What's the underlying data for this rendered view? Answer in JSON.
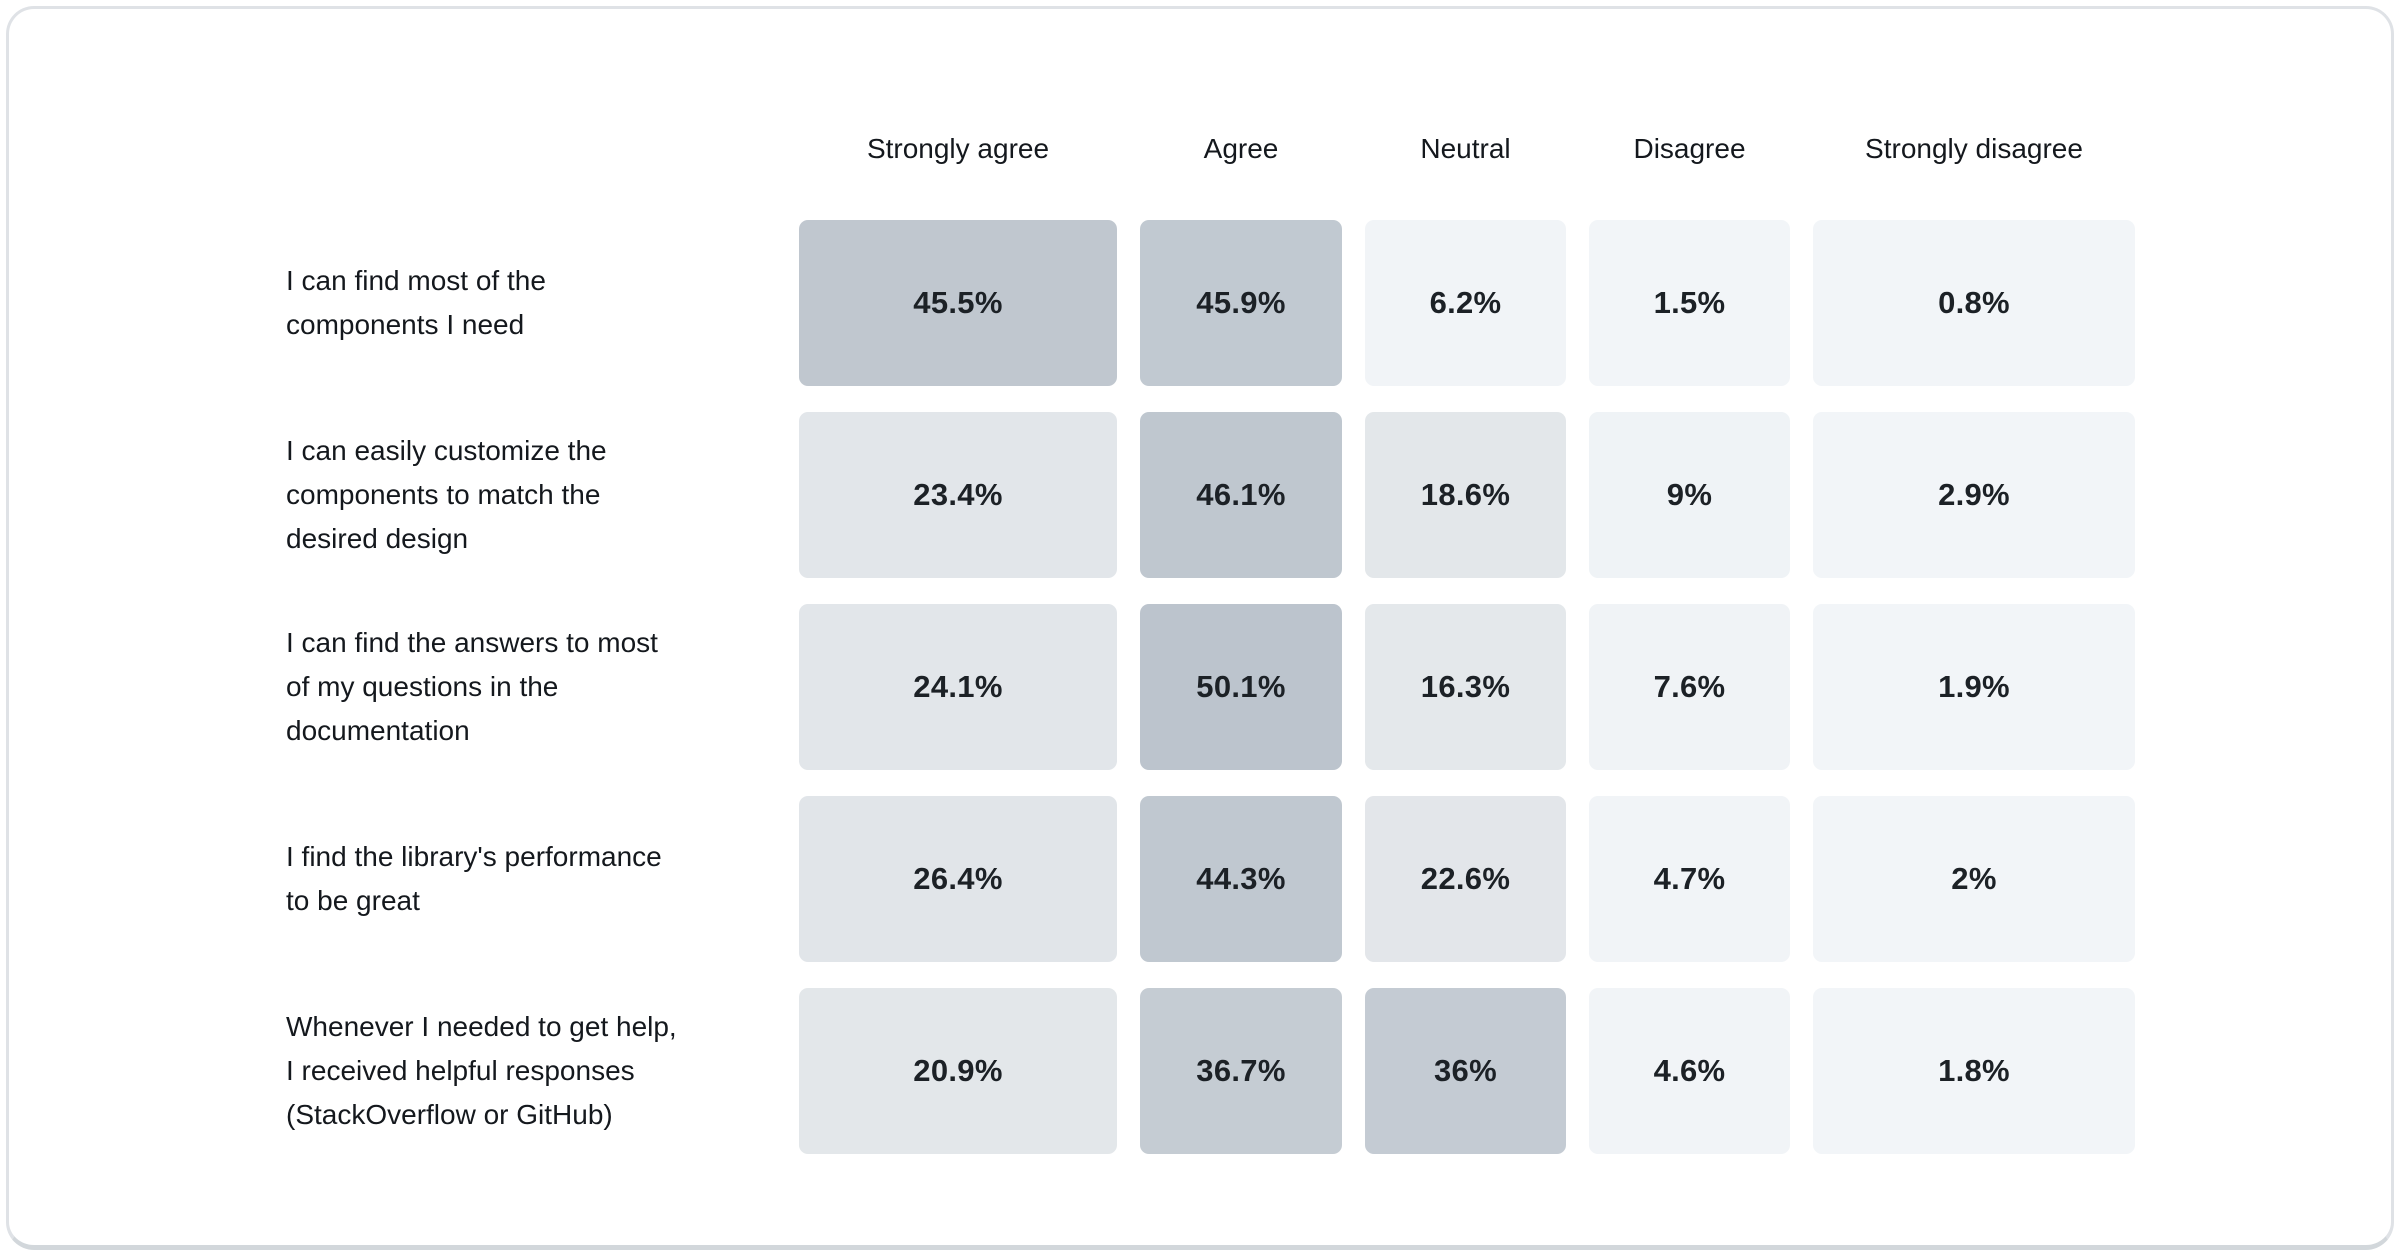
{
  "chart_data": {
    "type": "heatmap",
    "columns": [
      "Strongly agree",
      "Agree",
      "Neutral",
      "Disagree",
      "Strongly disagree"
    ],
    "rows": [
      {
        "label": "I can find most of the components I need",
        "label_lines": [
          "I can find most of the",
          "components I need"
        ],
        "values": [
          "45.5%",
          "45.9%",
          "6.2%",
          "1.5%",
          "0.8%"
        ],
        "values_numeric": [
          45.5,
          45.9,
          6.2,
          1.5,
          0.8
        ],
        "colors": [
          "#c0c7cf",
          "#c1c9d1",
          "#f1f4f7",
          "#f2f5f8",
          "#f2f5f8"
        ]
      },
      {
        "label": "I can easily customize the components to match the desired design",
        "label_lines": [
          "I can easily customize the",
          "components to match the",
          "desired design"
        ],
        "values": [
          "23.4%",
          "46.1%",
          "18.6%",
          "9%",
          "2.9%"
        ],
        "values_numeric": [
          23.4,
          46.1,
          18.6,
          9,
          2.9
        ],
        "colors": [
          "#e2e6ea",
          "#bfc7cf",
          "#e3e7ea",
          "#eff3f6",
          "#f2f5f8"
        ]
      },
      {
        "label": "I can find the answers to most of my questions in the documentation",
        "label_lines": [
          "I can find the answers to most",
          "of my questions in the",
          "documentation"
        ],
        "values": [
          "24.1%",
          "50.1%",
          "16.3%",
          "7.6%",
          "1.9%"
        ],
        "values_numeric": [
          24.1,
          50.1,
          16.3,
          7.6,
          1.9
        ],
        "colors": [
          "#e2e6ea",
          "#bcc4cd",
          "#e4e8eb",
          "#f0f3f6",
          "#f2f5f8"
        ]
      },
      {
        "label": "I find the library's performance to be great",
        "label_lines": [
          "I find the library's performance",
          "to be great"
        ],
        "values": [
          "26.4%",
          "44.3%",
          "22.6%",
          "4.7%",
          "2%"
        ],
        "values_numeric": [
          26.4,
          44.3,
          22.6,
          4.7,
          2
        ],
        "colors": [
          "#e1e5e9",
          "#c0c8d0",
          "#e3e6ea",
          "#f1f4f7",
          "#f2f5f8"
        ]
      },
      {
        "label": "Whenever I needed to get help, I received helpful responses (StackOverflow or GitHub)",
        "label_lines": [
          "Whenever I needed to get help,",
          "I received helpful responses",
          "(StackOverflow or GitHub)"
        ],
        "values": [
          "20.9%",
          "36.7%",
          "36%",
          "4.6%",
          "1.8%"
        ],
        "values_numeric": [
          20.9,
          36.7,
          36,
          4.6,
          1.8
        ],
        "colors": [
          "#e3e7ea",
          "#c5ccd3",
          "#c4cbd3",
          "#f1f4f7",
          "#f2f5f8"
        ]
      }
    ],
    "value_unit": "%",
    "color_scale": {
      "min_color": "#f2f5f8",
      "max_color": "#bcc4cd"
    },
    "legend_position": "none",
    "grid": false
  },
  "card": {
    "background": "#ffffff",
    "border_color": "#dfe2e6",
    "text_color": "#14181d"
  }
}
